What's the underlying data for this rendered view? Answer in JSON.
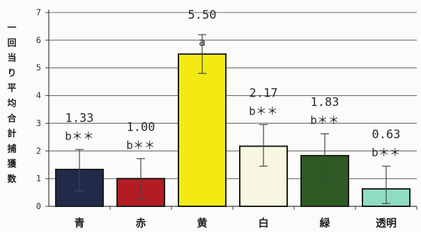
{
  "chart_data": {
    "type": "bar",
    "ylabel": "一回当り平均合計捕獲数",
    "xlabel": "",
    "title": "",
    "ylim": [
      0,
      7
    ],
    "yticks": [
      "0",
      "1",
      "2",
      "3",
      "4",
      "5",
      "6",
      "7"
    ],
    "grid": "horizontal",
    "categories": [
      "青",
      "赤",
      "黄",
      "白",
      "緑",
      "透明"
    ],
    "values": [
      1.33,
      1.0,
      5.5,
      2.17,
      1.83,
      0.63
    ],
    "value_labels": [
      "1.33",
      "1.00",
      "5.50",
      "2.17",
      "1.83",
      "0.63"
    ],
    "significance_labels": [
      "b＊＊",
      "b＊＊",
      "a",
      "b＊＊",
      "b＊＊",
      "b＊＊"
    ],
    "error_upper": [
      2.05,
      1.72,
      4.8,
      2.95,
      2.62,
      1.45
    ],
    "error_lower": [
      0.55,
      0.25,
      6.2,
      1.45,
      1.0,
      0.1
    ],
    "colors": [
      "#222a4a",
      "#b31c22",
      "#f2ea12",
      "#f7f7e2",
      "#2d5a22",
      "#8fdcc4"
    ]
  }
}
